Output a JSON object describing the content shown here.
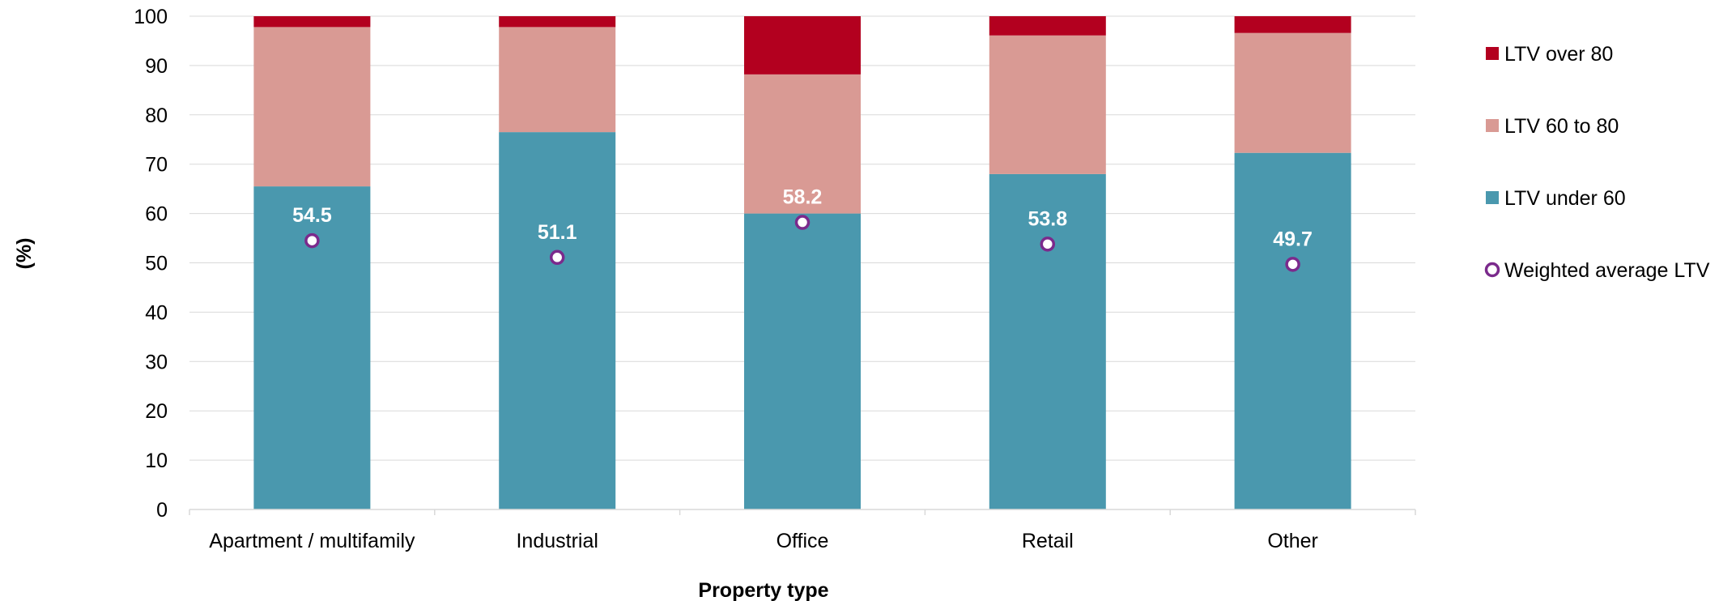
{
  "chart_data": {
    "type": "bar",
    "stacked": true,
    "categories": [
      "Apartment / multifamily",
      "Industrial",
      "Office",
      "Retail",
      "Other"
    ],
    "series": [
      {
        "name": "LTV under 60",
        "color": "#4a98ae",
        "values": [
          65.5,
          76.5,
          60.0,
          68.0,
          72.3
        ]
      },
      {
        "name": "LTV 60 to 80",
        "color": "#d99a94",
        "values": [
          32.3,
          21.3,
          28.2,
          28.1,
          24.3
        ]
      },
      {
        "name": "LTV over 80",
        "color": "#b3001f",
        "values": [
          2.2,
          2.2,
          11.8,
          3.9,
          3.4
        ]
      }
    ],
    "weighted_average": {
      "name": "Weighted average LTV",
      "color": "#7b2a8c",
      "values": [
        54.5,
        51.1,
        58.2,
        53.8,
        49.7
      ],
      "labels": [
        "54.5",
        "51.1",
        "58.2",
        "53.8",
        "49.7"
      ]
    },
    "title": "",
    "xlabel": "Property type",
    "ylabel": "(%)",
    "ylim": [
      0,
      100
    ],
    "yticks": [
      0,
      10,
      20,
      30,
      40,
      50,
      60,
      70,
      80,
      90,
      100
    ],
    "grid": true,
    "legend_position": "right",
    "legend_order": [
      "LTV over 80",
      "LTV 60 to 80",
      "LTV under 60",
      "Weighted average LTV"
    ]
  }
}
